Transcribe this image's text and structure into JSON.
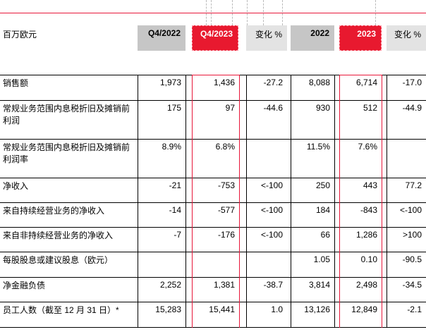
{
  "header": {
    "unit": "百万欧元",
    "columns": [
      "Q4/2022",
      "Q4/2023",
      "变化 %",
      "2022",
      "2023",
      "变化 %"
    ]
  },
  "rows": [
    {
      "label": "销售额",
      "values": [
        "1,973",
        "1,436",
        "-27.2",
        "8,088",
        "6,714",
        "-17.0"
      ]
    },
    {
      "label": "常规业务范围内息税折旧及摊销前利润",
      "values": [
        "175",
        "97",
        "-44.6",
        "930",
        "512",
        "-44.9"
      ]
    },
    {
      "label": "常规业务范围内息税折旧及摊销前利润率",
      "values": [
        "8.9%",
        "6.8%",
        "",
        "11.5%",
        "7.6%",
        ""
      ]
    },
    {
      "label": "净收入",
      "values": [
        "-21",
        "-753",
        "<-100",
        "250",
        "443",
        "77.2"
      ]
    },
    {
      "label": "来自持续经营业务的净收入",
      "values": [
        "-14",
        "-577",
        "<-100",
        "184",
        "-843",
        "<-100"
      ]
    },
    {
      "label": "来自非持续经营业务的净收入",
      "values": [
        "-7",
        "-176",
        "<-100",
        "66",
        "1,286",
        ">100"
      ]
    },
    {
      "label": "每股股息或建议股息（欧元）",
      "values": [
        "",
        "",
        "",
        "1.05",
        "0.10",
        "-90.5"
      ]
    },
    {
      "label": "净金融负债",
      "values": [
        "2,252",
        "1,381",
        "-38.7",
        "3,814",
        "2,498",
        "-34.5"
      ]
    },
    {
      "label": "员工人数（截至 12 月 31 日）*",
      "values": [
        "15,283",
        "15,441",
        "1.0",
        "13,126",
        "12,849",
        "-2.1"
      ]
    }
  ]
}
